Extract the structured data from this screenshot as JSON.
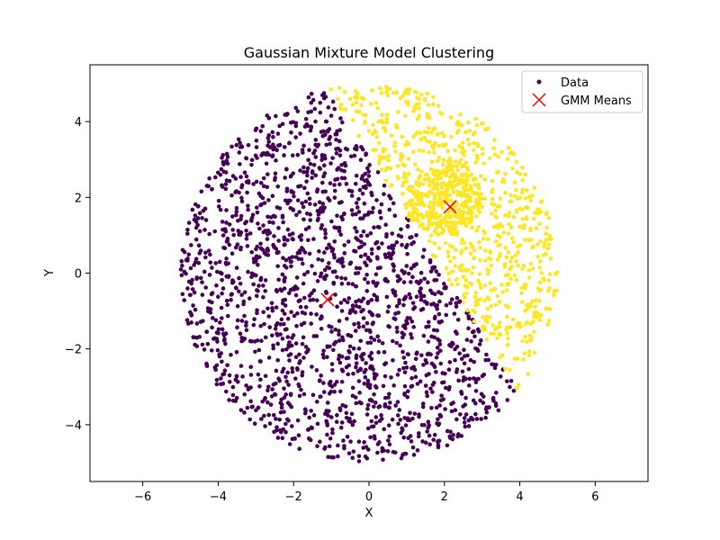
{
  "chart_data": {
    "type": "scatter",
    "title": "Gaussian Mixture Model Clustering",
    "xlabel": "X",
    "ylabel": "Y",
    "xlim": [
      -7.4,
      7.4
    ],
    "ylim": [
      -5.5,
      5.5
    ],
    "xticks": [
      -6,
      -4,
      -2,
      0,
      2,
      4,
      6
    ],
    "yticks": [
      -4,
      -2,
      0,
      2,
      4
    ],
    "xtick_labels": [
      "−6",
      "−4",
      "−2",
      "0",
      "2",
      "4",
      "6"
    ],
    "ytick_labels": [
      "−4",
      "−2",
      "0",
      "2",
      "4"
    ],
    "grid": false,
    "legend": {
      "placement": "top-right",
      "entries": [
        "Data",
        "GMM Means"
      ]
    },
    "colors": {
      "cluster_0": "#440154",
      "cluster_1": "#fde725",
      "means": "#ff0000"
    },
    "data_series": {
      "name": "Data",
      "distribution": "uniform disk radius 5 centered at origin plus dense blob radius 1 centered at (2, 2)",
      "disk_radius": 5,
      "disk_point_count": 2500,
      "blob_center": [
        2,
        2
      ],
      "blob_radius": 1.0,
      "blob_point_count": 300,
      "cluster_boundary": "points closer to mean 1 than mean 0 along the split line through the plane are yellow"
    },
    "gmm_means": {
      "name": "GMM Means",
      "points": [
        {
          "x": -1.1,
          "y": -0.7
        },
        {
          "x": 2.15,
          "y": 1.75
        }
      ]
    }
  }
}
